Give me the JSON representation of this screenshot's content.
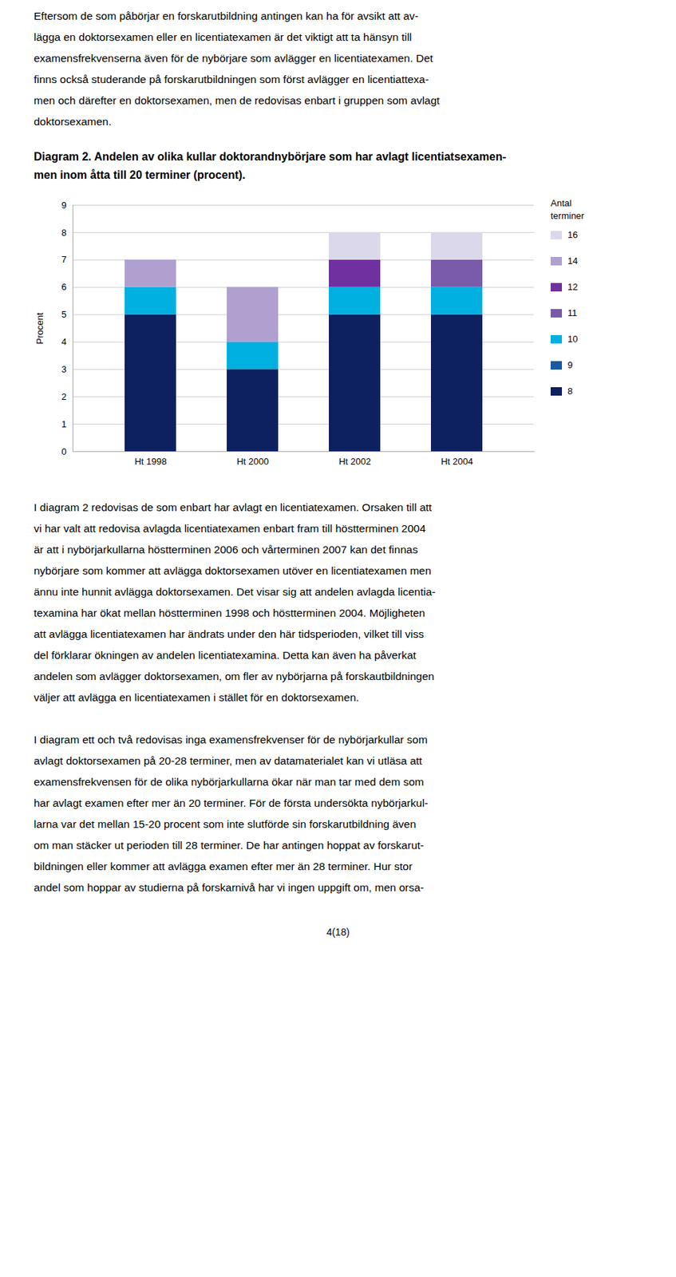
{
  "text_above": [
    "Eftersom de som påbörjar en forskarutbildning antingen kan ha för avsikt att av-",
    "lägga en doktorsexamen eller en licentiatexamen är det viktigt att ta hänsyn till",
    "examensfrekvenserna även för de nybörjare som avlägger en licentiatexamen. Det",
    "finns också studerande på forskarutbildningen som först avlägger en licentiattexa-",
    "men och därefter en doktorsexamen, men de redovisas enbart i gruppen som avlagt",
    "doktorsexamen."
  ],
  "chart_data": {
    "type": "bar",
    "title": "Diagram 2. Andelen av olika kullar doktorandnybörjare som har avlagt licentiatsexamen-\nmen inom åtta till 20 terminer (procent).",
    "ylabel": "Procent",
    "legend_title": "Antal\nterminer",
    "categories": [
      "Ht 1998",
      "Ht 2000",
      "Ht 2002",
      "Ht 2004"
    ],
    "series": [
      {
        "name": "8",
        "color": "#0d2060",
        "values": [
          5.0,
          3.0,
          5.0,
          5.0
        ]
      },
      {
        "name": "9",
        "color": "#1a5aa0",
        "values": [
          0.0,
          0.0,
          0.0,
          0.0
        ]
      },
      {
        "name": "10",
        "color": "#00b0e0",
        "values": [
          1.0,
          1.0,
          1.0,
          1.0
        ]
      },
      {
        "name": "11",
        "color": "#7a5aaa",
        "values": [
          0.0,
          0.0,
          0.0,
          1.0
        ]
      },
      {
        "name": "12",
        "color": "#7030a0",
        "values": [
          0.0,
          0.0,
          1.0,
          0.0
        ]
      },
      {
        "name": "14",
        "color": "#b0a0d0",
        "values": [
          1.0,
          2.0,
          0.0,
          0.0
        ]
      },
      {
        "name": "16",
        "color": "#dcd8ec",
        "values": [
          0.0,
          0.0,
          1.0,
          1.0
        ]
      }
    ],
    "stacked": true,
    "ylim": [
      0,
      9
    ],
    "yticks": [
      0,
      1,
      2,
      3,
      4,
      5,
      6,
      7,
      8,
      9
    ],
    "grid": true,
    "legend": "right"
  },
  "text_below": [
    [
      "I diagram 2 redovisas de som enbart har avlagt en licentiatexamen. Orsaken till att",
      "vi har valt att redovisa avlagda licentiatexamen enbart fram till höstterminen 2004",
      "är att i nybörjarkullarna höstterminen 2006 och vårterminen 2007 kan det finnas",
      "nybörjare som kommer att avlägga doktorsexamen utöver en licentiatexamen men",
      "ännu inte hunnit avlägga doktorsexamen. Det visar sig att andelen avlagda licentia-",
      "texamina har ökat mellan höstterminen 1998 och höstterminen 2004. Möjligheten",
      "att avlägga licentiatexamen har ändrats under den här tidsperioden, vilket till viss",
      "del förklarar ökningen av andelen licentiatexamina. Detta kan även ha påverkat",
      "andelen som avlägger doktorsexamen, om fler av nybörjarna på forskautbildningen",
      "väljer att avlägga en licentiatexamen i stället för en doktorsexamen."
    ],
    [
      "I diagram ett och två redovisas inga examensfrekvenser för de nybörjarkullar som",
      "avlagt doktorsexamen på 20-28 terminer, men av datamaterialet kan vi utläsa att",
      "examensfrekvensen för de olika nybörjarkullarna ökar när man tar med dem som",
      "har avlagt examen efter mer än 20 terminer. För de första undersökta nybörjarkul-",
      "larna var det mellan 15-20 procent som inte slutförde sin forskarutbildning även",
      "om man stäcker ut perioden till 28 terminer. De har antingen hoppat av forskarut-",
      "bildningen eller kommer att avlägga examen efter mer än 28 terminer. Hur stor",
      "andel som hoppar av studierna på forskarnivå har vi ingen uppgift om, men orsa-"
    ]
  ],
  "page_number": "4(18)"
}
